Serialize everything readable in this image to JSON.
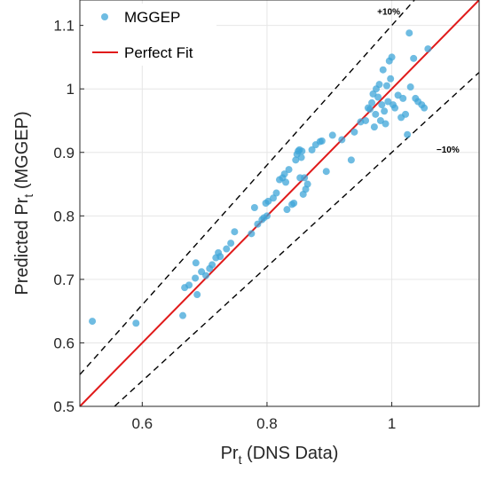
{
  "chart_data": {
    "type": "scatter",
    "xlabel_main": "Pr",
    "xlabel_sub": "t",
    "xlabel_rest": " (DNS Data)",
    "ylabel_main": "Predicted Pr",
    "ylabel_sub": "t",
    "ylabel_rest": " (MGGEP)",
    "xlim": [
      0.5,
      1.14
    ],
    "ylim": [
      0.5,
      1.14
    ],
    "xticks": [
      0.6,
      0.8,
      1
    ],
    "xtick_labels": [
      "0.6",
      "0.8",
      "1"
    ],
    "yticks": [
      0.5,
      0.6,
      0.7,
      0.8,
      0.9,
      1.0,
      1.1
    ],
    "ytick_labels": [
      "0.5",
      "0.6",
      "0.7",
      "0.8",
      "0.9",
      "1",
      "1.1"
    ],
    "grid": true,
    "legend_position": "top-left",
    "series": [
      {
        "name": "MGGEP",
        "kind": "points",
        "color": "#3fa6d8",
        "points": [
          [
            0.52,
            0.634
          ],
          [
            0.59,
            0.631
          ],
          [
            0.665,
            0.643
          ],
          [
            0.668,
            0.687
          ],
          [
            0.675,
            0.691
          ],
          [
            0.685,
            0.702
          ],
          [
            0.686,
            0.726
          ],
          [
            0.688,
            0.676
          ],
          [
            0.695,
            0.712
          ],
          [
            0.702,
            0.706
          ],
          [
            0.708,
            0.717
          ],
          [
            0.712,
            0.723
          ],
          [
            0.718,
            0.734
          ],
          [
            0.722,
            0.742
          ],
          [
            0.725,
            0.736
          ],
          [
            0.735,
            0.748
          ],
          [
            0.742,
            0.757
          ],
          [
            0.748,
            0.775
          ],
          [
            0.775,
            0.772
          ],
          [
            0.78,
            0.813
          ],
          [
            0.785,
            0.787
          ],
          [
            0.792,
            0.794
          ],
          [
            0.795,
            0.797
          ],
          [
            0.798,
            0.82
          ],
          [
            0.8,
            0.8
          ],
          [
            0.802,
            0.823
          ],
          [
            0.81,
            0.828
          ],
          [
            0.815,
            0.836
          ],
          [
            0.82,
            0.857
          ],
          [
            0.825,
            0.86
          ],
          [
            0.828,
            0.866
          ],
          [
            0.83,
            0.853
          ],
          [
            0.832,
            0.81
          ],
          [
            0.835,
            0.873
          ],
          [
            0.84,
            0.818
          ],
          [
            0.843,
            0.82
          ],
          [
            0.846,
            0.888
          ],
          [
            0.848,
            0.897
          ],
          [
            0.85,
            0.902
          ],
          [
            0.852,
            0.904
          ],
          [
            0.853,
            0.86
          ],
          [
            0.855,
            0.892
          ],
          [
            0.856,
            0.902
          ],
          [
            0.858,
            0.834
          ],
          [
            0.86,
            0.86
          ],
          [
            0.862,
            0.842
          ],
          [
            0.865,
            0.85
          ],
          [
            0.872,
            0.904
          ],
          [
            0.878,
            0.912
          ],
          [
            0.885,
            0.917
          ],
          [
            0.888,
            0.918
          ],
          [
            0.895,
            0.87
          ],
          [
            0.905,
            0.927
          ],
          [
            0.92,
            0.92
          ],
          [
            0.935,
            0.888
          ],
          [
            0.94,
            0.932
          ],
          [
            0.95,
            0.948
          ],
          [
            0.958,
            0.95
          ],
          [
            0.962,
            0.97
          ],
          [
            0.965,
            0.968
          ],
          [
            0.968,
            0.978
          ],
          [
            0.97,
            0.992
          ],
          [
            0.972,
            0.94
          ],
          [
            0.974,
            0.96
          ],
          [
            0.975,
            1.0
          ],
          [
            0.978,
            0.987
          ],
          [
            0.98,
            1.007
          ],
          [
            0.982,
            0.95
          ],
          [
            0.984,
            0.975
          ],
          [
            0.986,
            1.03
          ],
          [
            0.988,
            0.965
          ],
          [
            0.99,
            0.945
          ],
          [
            0.992,
            1.005
          ],
          [
            0.994,
            0.98
          ],
          [
            0.996,
            1.044
          ],
          [
            0.998,
            1.016
          ],
          [
            1.0,
            1.05
          ],
          [
            1.002,
            0.975
          ],
          [
            1.005,
            0.97
          ],
          [
            1.01,
            0.99
          ],
          [
            1.015,
            0.955
          ],
          [
            1.018,
            0.985
          ],
          [
            1.022,
            0.96
          ],
          [
            1.025,
            0.928
          ],
          [
            1.028,
            1.088
          ],
          [
            1.03,
            1.003
          ],
          [
            1.035,
            1.048
          ],
          [
            1.038,
            0.985
          ],
          [
            1.042,
            0.98
          ],
          [
            1.048,
            0.975
          ],
          [
            1.052,
            0.97
          ],
          [
            1.058,
            1.063
          ]
        ]
      },
      {
        "name": "Perfect Fit",
        "kind": "line",
        "color": "#e01a1a",
        "slope": 1.0,
        "intercept": 0.0
      },
      {
        "name": "",
        "kind": "line",
        "color": "#000000",
        "dash": true,
        "slope": 1.1,
        "intercept": 0.0,
        "label": "+10%",
        "label_at": [
          0.995,
          1.117
        ]
      },
      {
        "name": "",
        "kind": "line",
        "color": "#000000",
        "dash": true,
        "slope": 0.9,
        "intercept": 0.0,
        "label": "−10%",
        "label_at": [
          1.09,
          0.9
        ]
      }
    ]
  }
}
